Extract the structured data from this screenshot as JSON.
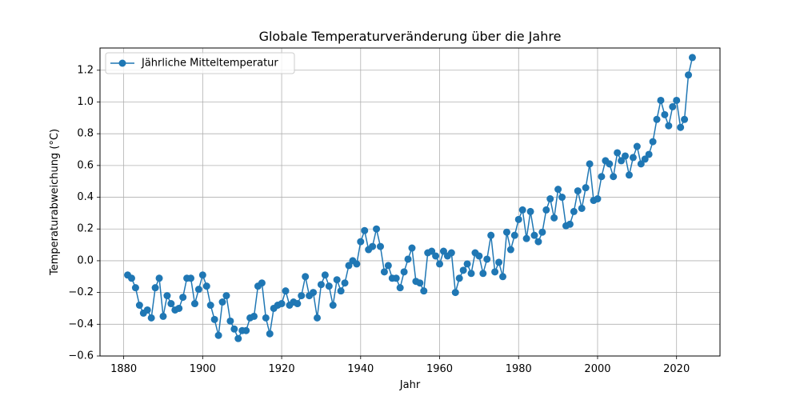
{
  "chart_data": {
    "type": "line",
    "title": "Globale Temperaturveränderung über die Jahre",
    "xlabel": "Jahr",
    "ylabel": "Temperaturabweichung (°C)",
    "xlim": [
      1874,
      2031
    ],
    "ylim": [
      -0.6,
      1.34
    ],
    "xticks": [
      1880,
      1900,
      1920,
      1940,
      1960,
      1980,
      2000,
      2020
    ],
    "yticks": [
      -0.6,
      -0.4,
      -0.2,
      0.0,
      0.2,
      0.4,
      0.6,
      0.8,
      1.0,
      1.2
    ],
    "ytick_labels": [
      "−0.6",
      "−0.4",
      "−0.2",
      "0.0",
      "0.2",
      "0.4",
      "0.6",
      "0.8",
      "1.0",
      "1.2"
    ],
    "grid": true,
    "legend_position": "top-left",
    "color": "#1f77b4",
    "series": [
      {
        "name": "Jährliche Mitteltemperatur",
        "marker": "circle",
        "x": [
          1881,
          1882,
          1883,
          1884,
          1885,
          1886,
          1887,
          1888,
          1889,
          1890,
          1891,
          1892,
          1893,
          1894,
          1895,
          1896,
          1897,
          1898,
          1899,
          1900,
          1901,
          1902,
          1903,
          1904,
          1905,
          1906,
          1907,
          1908,
          1909,
          1910,
          1911,
          1912,
          1913,
          1914,
          1915,
          1916,
          1917,
          1918,
          1919,
          1920,
          1921,
          1922,
          1923,
          1924,
          1925,
          1926,
          1927,
          1928,
          1929,
          1930,
          1931,
          1932,
          1933,
          1934,
          1935,
          1936,
          1937,
          1938,
          1939,
          1940,
          1941,
          1942,
          1943,
          1944,
          1945,
          1946,
          1947,
          1948,
          1949,
          1950,
          1951,
          1952,
          1953,
          1954,
          1955,
          1956,
          1957,
          1958,
          1959,
          1960,
          1961,
          1962,
          1963,
          1964,
          1965,
          1966,
          1967,
          1968,
          1969,
          1970,
          1971,
          1972,
          1973,
          1974,
          1975,
          1976,
          1977,
          1978,
          1979,
          1980,
          1981,
          1982,
          1983,
          1984,
          1985,
          1986,
          1987,
          1988,
          1989,
          1990,
          1991,
          1992,
          1993,
          1994,
          1995,
          1996,
          1997,
          1998,
          1999,
          2000,
          2001,
          2002,
          2003,
          2004,
          2005,
          2006,
          2007,
          2008,
          2009,
          2010,
          2011,
          2012,
          2013,
          2014,
          2015,
          2016,
          2017,
          2018,
          2019,
          2020,
          2021,
          2022,
          2023,
          2024
        ],
        "y": [
          -0.09,
          -0.11,
          -0.17,
          -0.28,
          -0.33,
          -0.31,
          -0.36,
          -0.17,
          -0.11,
          -0.35,
          -0.22,
          -0.27,
          -0.31,
          -0.3,
          -0.23,
          -0.11,
          -0.11,
          -0.27,
          -0.18,
          -0.09,
          -0.16,
          -0.28,
          -0.37,
          -0.47,
          -0.26,
          -0.22,
          -0.38,
          -0.43,
          -0.49,
          -0.44,
          -0.44,
          -0.36,
          -0.35,
          -0.16,
          -0.14,
          -0.36,
          -0.46,
          -0.3,
          -0.28,
          -0.27,
          -0.19,
          -0.28,
          -0.26,
          -0.27,
          -0.22,
          -0.1,
          -0.22,
          -0.2,
          -0.36,
          -0.15,
          -0.09,
          -0.16,
          -0.28,
          -0.12,
          -0.19,
          -0.14,
          -0.03,
          0.0,
          -0.02,
          0.12,
          0.19,
          0.07,
          0.09,
          0.2,
          0.09,
          -0.07,
          -0.03,
          -0.11,
          -0.11,
          -0.17,
          -0.07,
          0.01,
          0.08,
          -0.13,
          -0.14,
          -0.19,
          0.05,
          0.06,
          0.03,
          -0.02,
          0.06,
          0.03,
          0.05,
          -0.2,
          -0.11,
          -0.06,
          -0.02,
          -0.08,
          0.05,
          0.03,
          -0.08,
          0.01,
          0.16,
          -0.07,
          -0.01,
          -0.1,
          0.18,
          0.07,
          0.16,
          0.26,
          0.32,
          0.14,
          0.31,
          0.16,
          0.12,
          0.18,
          0.32,
          0.39,
          0.27,
          0.45,
          0.4,
          0.22,
          0.23,
          0.31,
          0.44,
          0.33,
          0.46,
          0.61,
          0.38,
          0.39,
          0.53,
          0.63,
          0.61,
          0.53,
          0.68,
          0.63,
          0.66,
          0.54,
          0.65,
          0.72,
          0.61,
          0.64,
          0.67,
          0.75,
          0.89,
          1.01,
          0.92,
          0.85,
          0.97,
          1.01,
          0.84,
          0.89,
          1.17,
          1.28
        ]
      }
    ]
  }
}
